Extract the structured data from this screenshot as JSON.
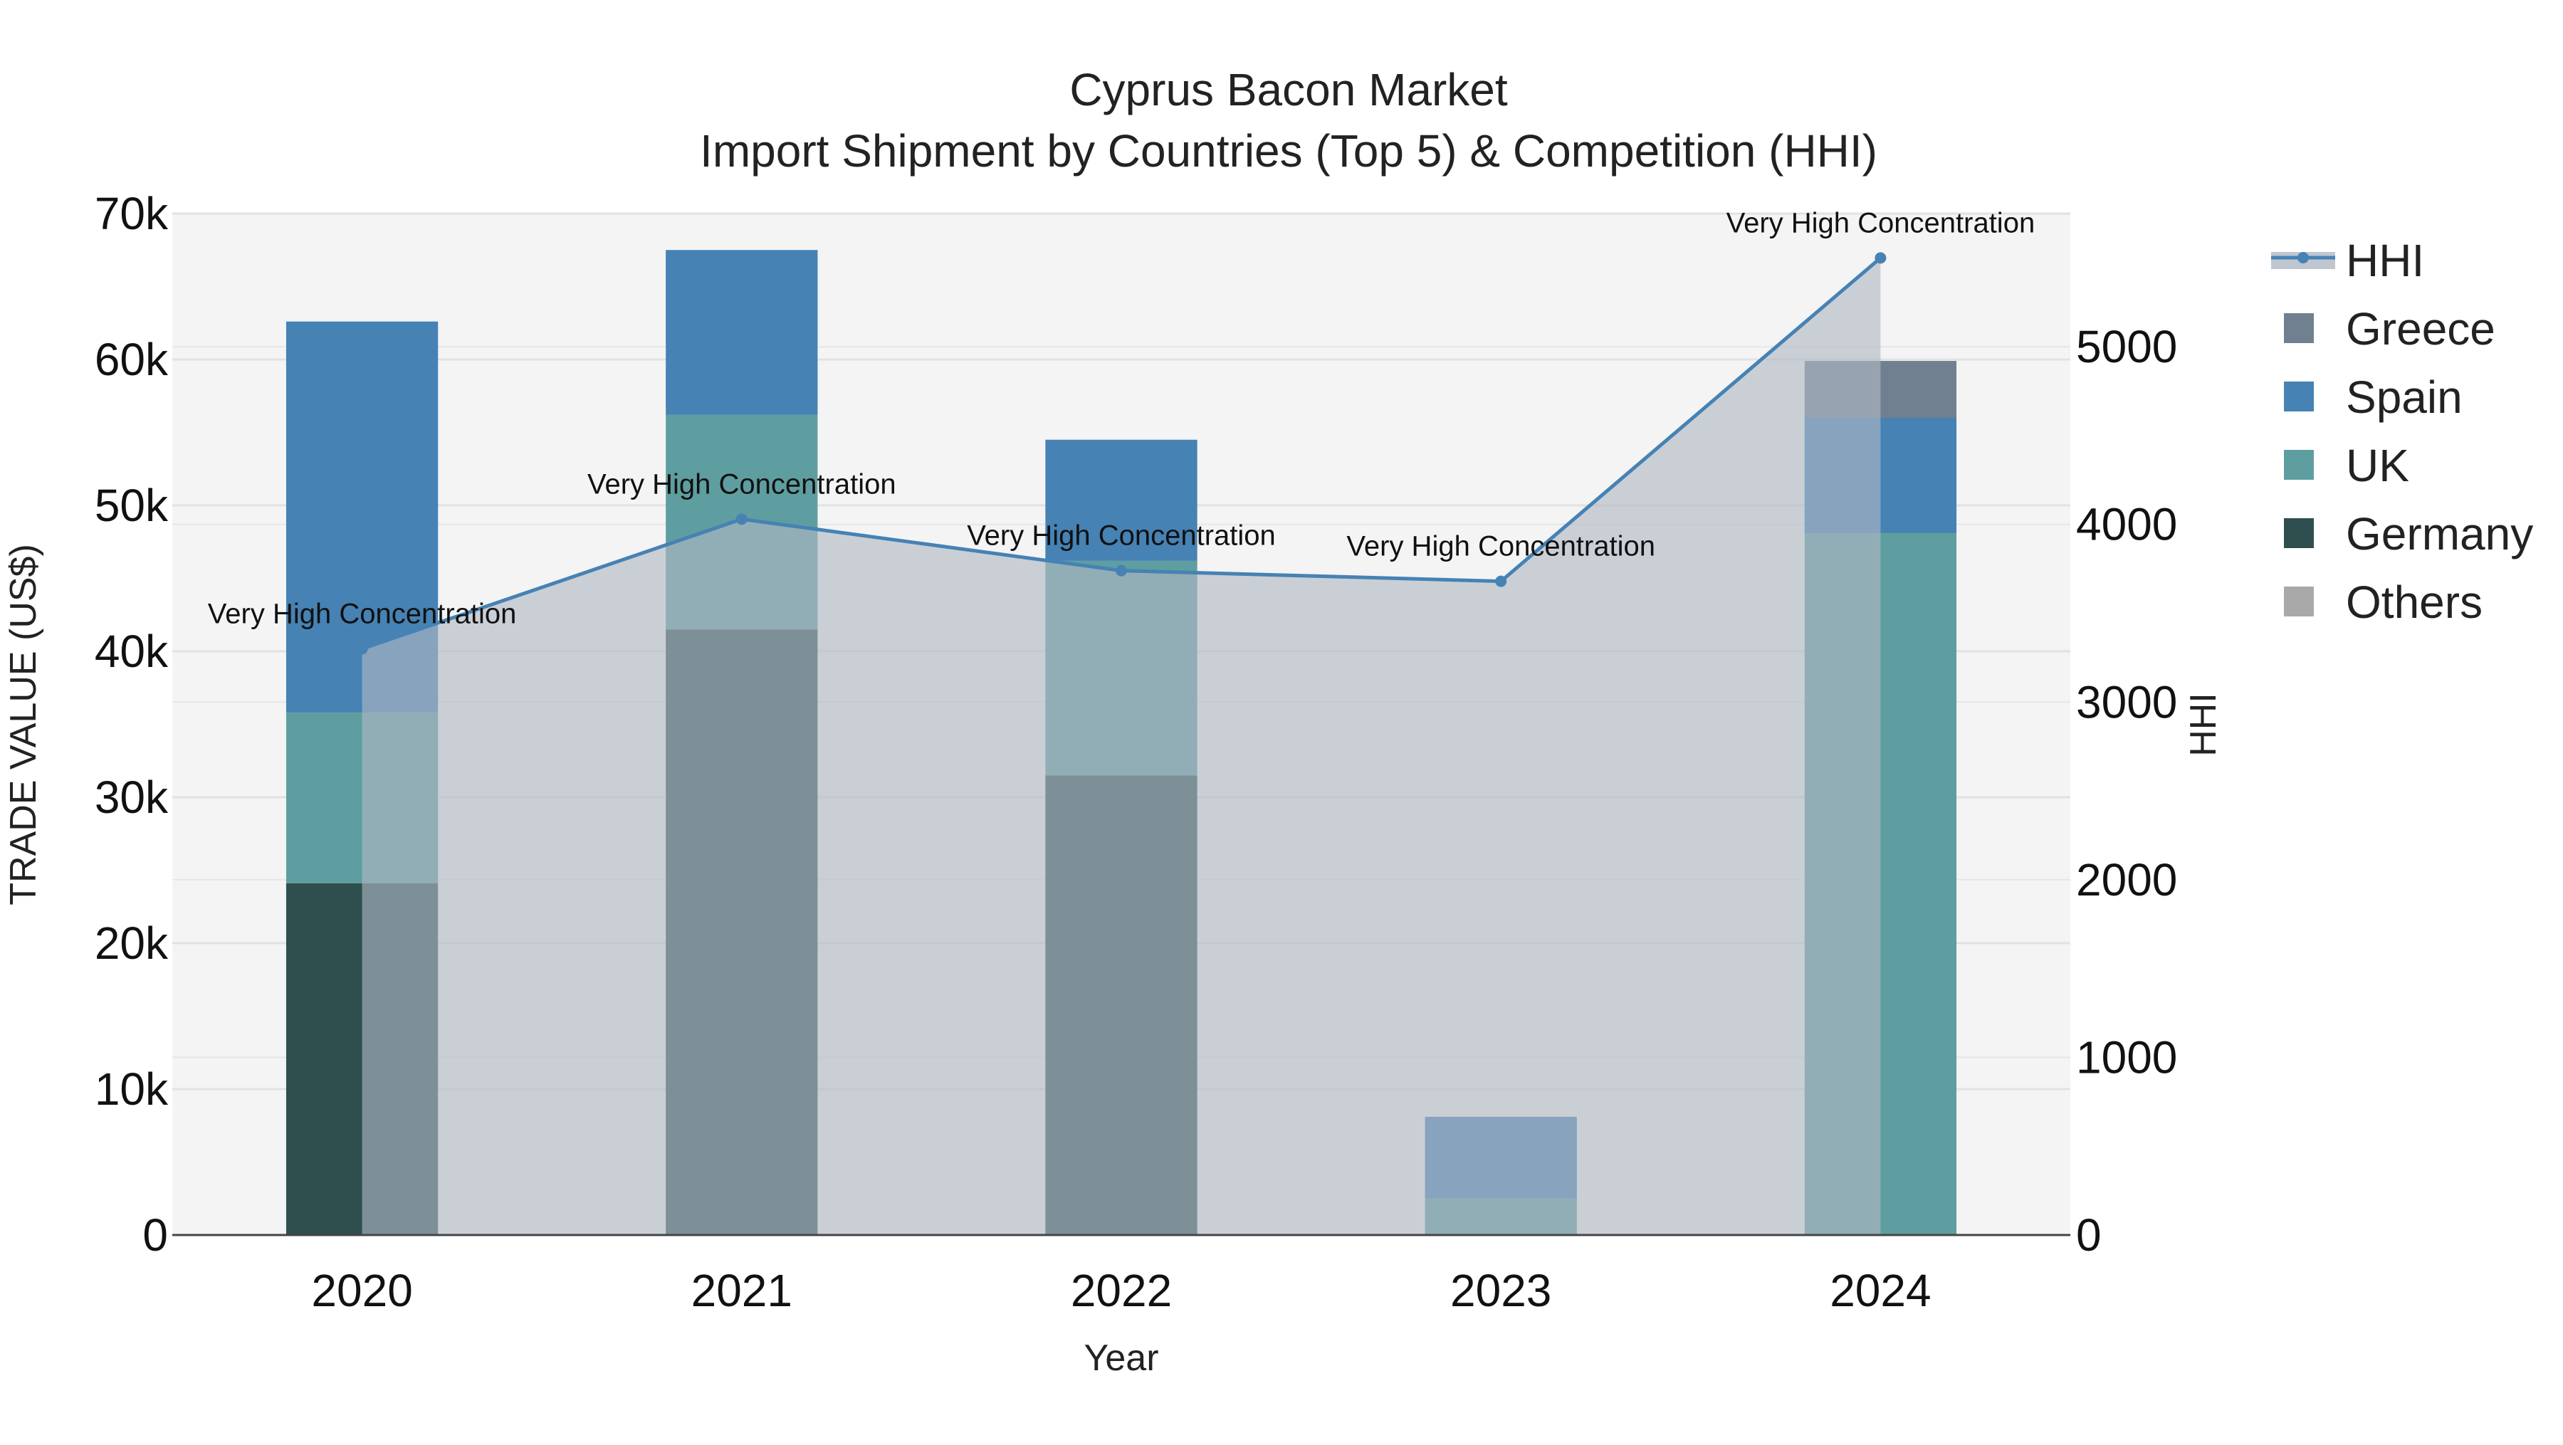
{
  "chart_data": {
    "type": "bar",
    "title": "Cyprus Bacon Market",
    "subtitle": "Import Shipment by Countries (Top 5) & Competition (HHI)",
    "xlabel": "Year",
    "ylabel": "TRADE VALUE (US$)",
    "y2label": "HHI",
    "categories": [
      "2020",
      "2021",
      "2022",
      "2023",
      "2024"
    ],
    "ylim": [
      0,
      70000
    ],
    "y2lim": [
      0,
      5750
    ],
    "y_ticks": [
      0,
      10000,
      20000,
      30000,
      40000,
      50000,
      60000,
      70000
    ],
    "y_tick_labels": [
      "0",
      "10k",
      "20k",
      "30k",
      "40k",
      "50k",
      "60k",
      "70k"
    ],
    "y2_ticks": [
      0,
      1000,
      2000,
      3000,
      4000,
      5000
    ],
    "y2_tick_labels": [
      "0",
      "1000",
      "2000",
      "3000",
      "4000",
      "5000"
    ],
    "stacked": true,
    "grid": true,
    "legend_position": "right",
    "series": [
      {
        "name": "Germany",
        "color": "#2F4F4F",
        "values": [
          24100,
          41500,
          31500,
          0,
          0
        ]
      },
      {
        "name": "UK",
        "color": "#5F9EA0",
        "values": [
          11700,
          14700,
          14700,
          2500,
          48100
        ]
      },
      {
        "name": "Spain",
        "color": "#4682B4",
        "values": [
          26800,
          11300,
          8300,
          5600,
          7900
        ]
      },
      {
        "name": "Greece",
        "color": "#708090",
        "values": [
          0,
          0,
          0,
          0,
          3900
        ]
      },
      {
        "name": "Others",
        "color": "#A9A9A9",
        "values": [
          0,
          0,
          0,
          0,
          0
        ]
      }
    ],
    "hhi": {
      "name": "HHI",
      "color": "#4682B4",
      "area_color": "#B0B8C4",
      "values": [
        3300,
        4030,
        3740,
        3680,
        5500
      ],
      "annotations": [
        "Very High Concentration",
        "Very High Concentration",
        "Very High Concentration",
        "Very High Concentration",
        "Very High Concentration"
      ]
    },
    "legend_order": [
      "HHI",
      "Greece",
      "Spain",
      "UK",
      "Germany",
      "Others"
    ]
  }
}
